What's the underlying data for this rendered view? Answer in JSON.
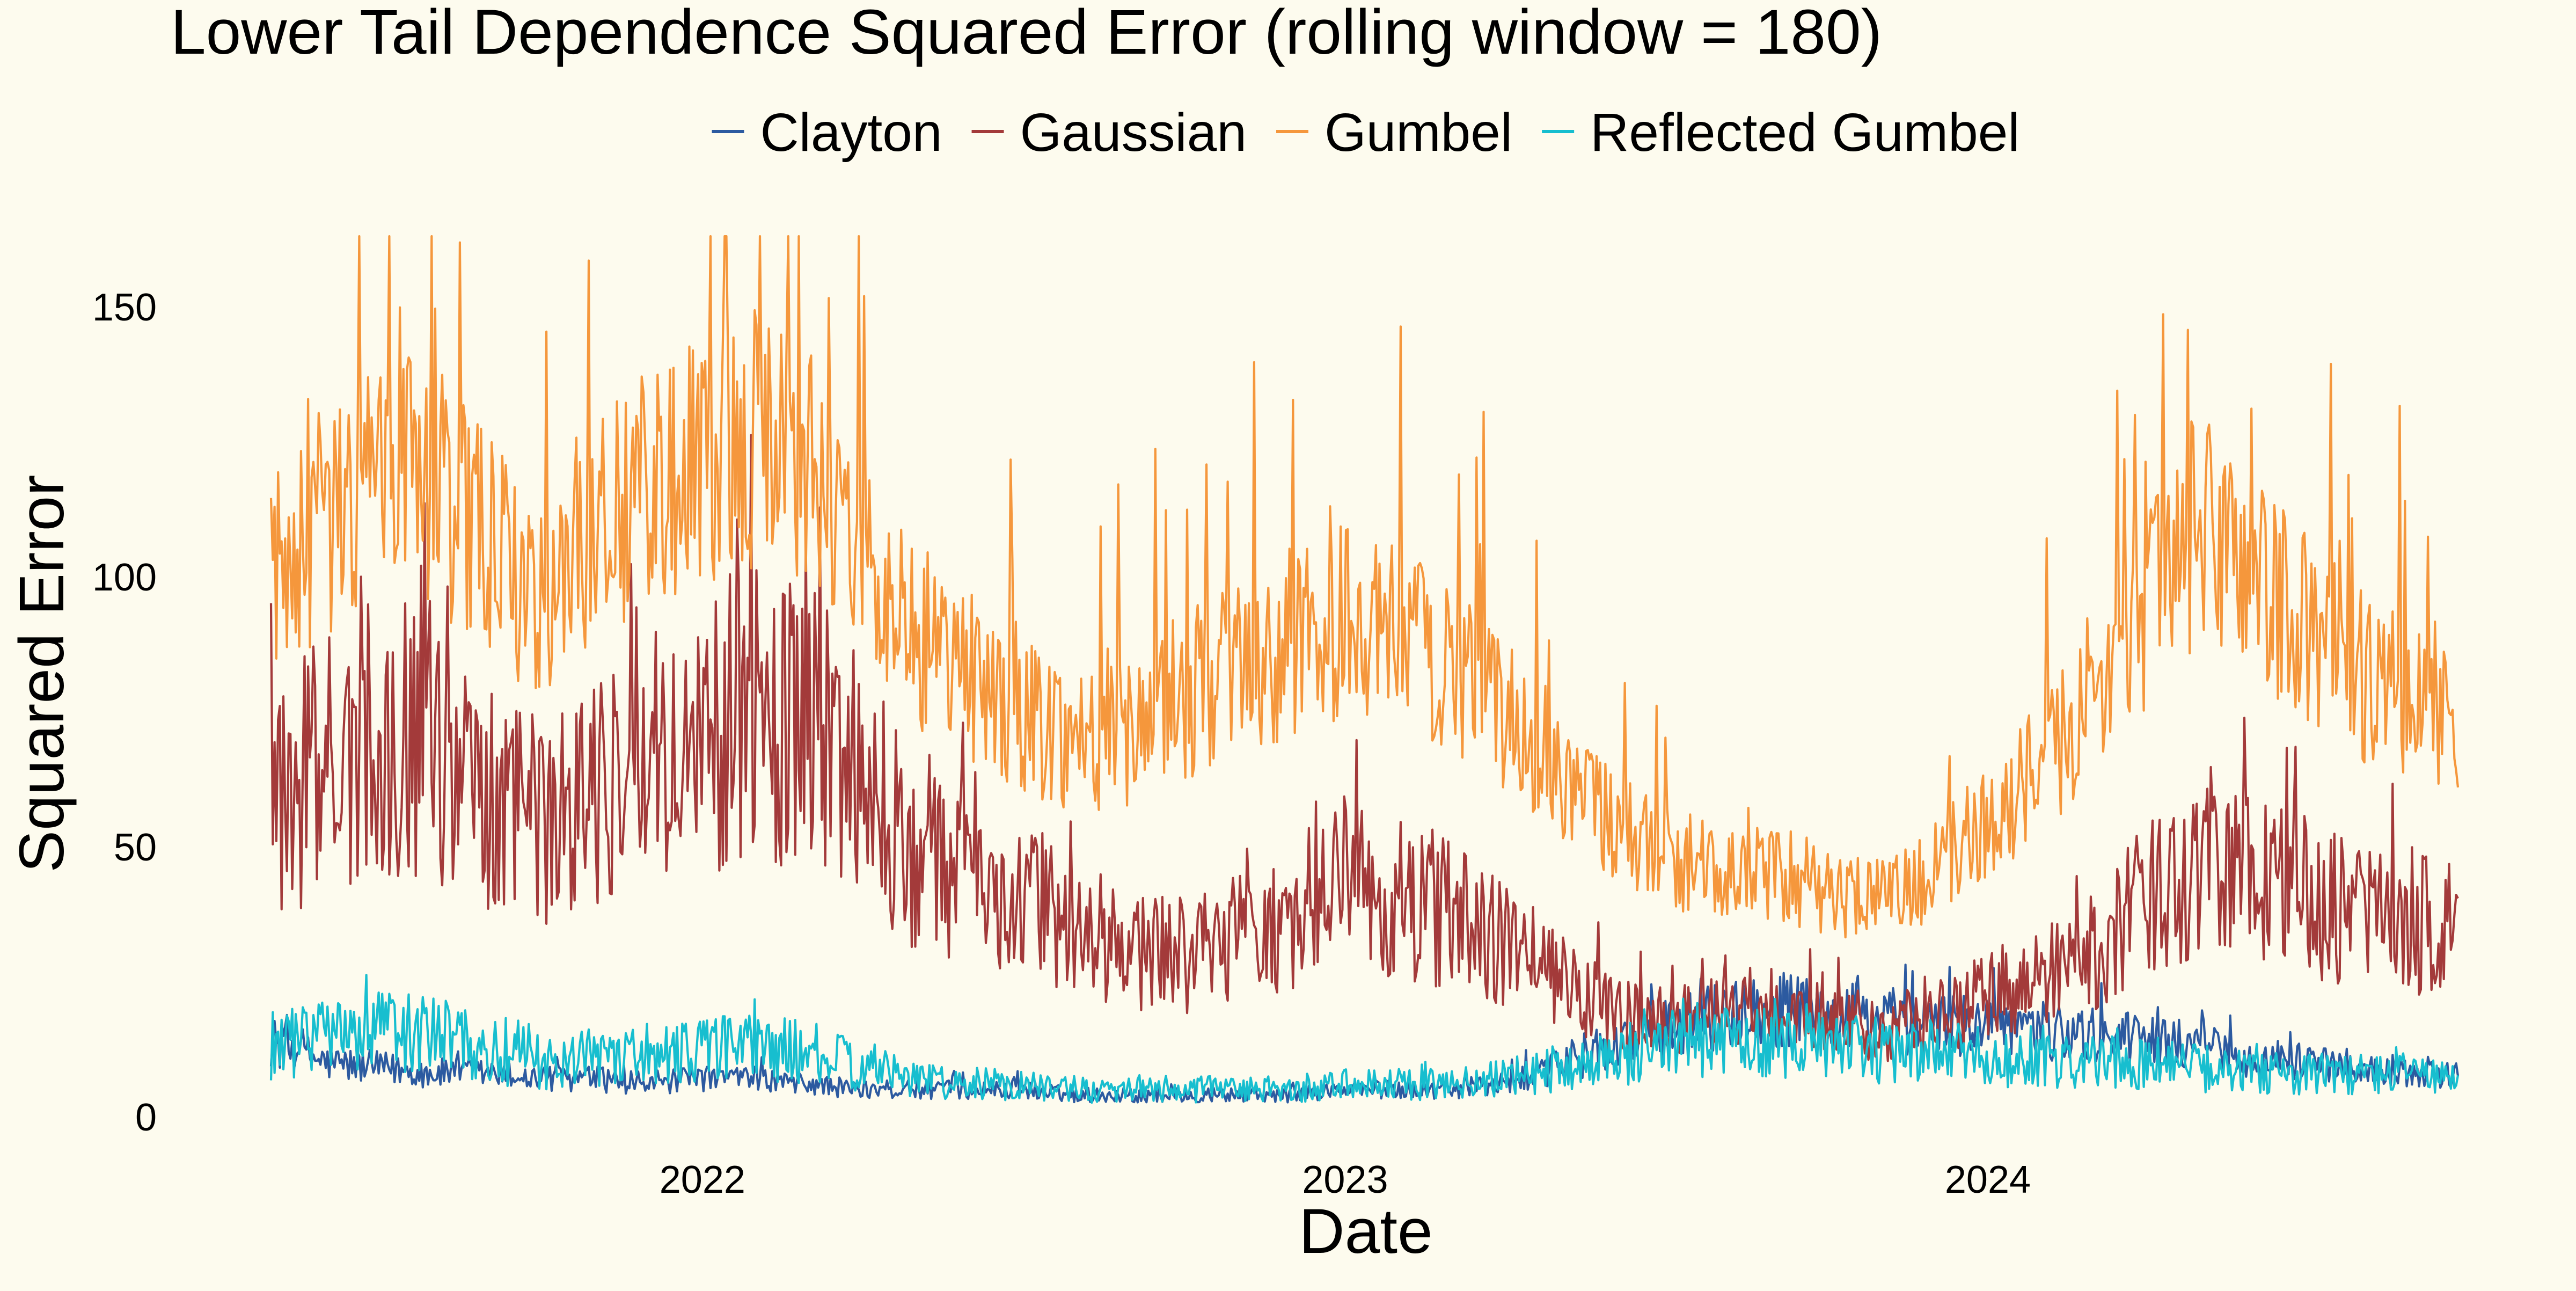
{
  "colors": {
    "background": "#fdfbee",
    "text": "#000000"
  },
  "chart_data": {
    "type": "line",
    "title": "Lower Tail Dependence Squared Error (rolling window = 180)",
    "xlabel": "Date",
    "ylabel": "Squared Error",
    "x_range": [
      "2021-05-01",
      "2024-09-24"
    ],
    "xticks": [
      {
        "date": "2022-01-01",
        "label": "2022"
      },
      {
        "date": "2023-01-01",
        "label": "2023"
      },
      {
        "date": "2024-01-01",
        "label": "2024"
      }
    ],
    "ylim": [
      0,
      165
    ],
    "yticks": [
      0,
      50,
      100,
      150
    ],
    "grid": false,
    "legend_position": "top",
    "series": [
      {
        "name": "Clayton",
        "color": "#2c5aa0",
        "x": [
          "2021-05-01",
          "2021-06-01",
          "2021-07-01",
          "2021-08-01",
          "2021-09-01",
          "2021-10-01",
          "2021-11-01",
          "2021-12-01",
          "2022-01-01",
          "2022-02-01",
          "2022-03-01",
          "2022-04-01",
          "2022-05-01",
          "2022-06-01",
          "2022-07-01",
          "2022-08-01",
          "2022-09-01",
          "2022-10-01",
          "2022-11-01",
          "2022-12-01",
          "2023-01-01",
          "2023-02-01",
          "2023-03-01",
          "2023-04-01",
          "2023-05-01",
          "2023-06-01",
          "2023-07-01",
          "2023-08-01",
          "2023-09-01",
          "2023-10-01",
          "2023-11-01",
          "2023-12-01",
          "2024-01-01",
          "2024-02-01",
          "2024-03-01",
          "2024-04-01",
          "2024-05-01",
          "2024-06-01",
          "2024-07-01",
          "2024-08-01",
          "2024-09-24"
        ],
        "y": [
          14,
          10,
          9,
          8,
          8,
          7,
          7,
          6,
          7,
          7,
          6,
          5,
          5,
          5,
          5,
          4,
          4,
          4,
          4,
          4,
          5,
          5,
          5,
          6,
          9,
          13,
          16,
          19,
          20,
          19,
          18,
          17,
          17,
          16,
          15,
          14,
          13,
          11,
          10,
          9,
          8
        ]
      },
      {
        "name": "Gaussian",
        "color": "#a33a3a",
        "x": [
          "2021-05-01",
          "2021-06-01",
          "2021-07-01",
          "2021-08-01",
          "2021-09-01",
          "2021-10-01",
          "2021-11-01",
          "2021-12-01",
          "2022-01-01",
          "2022-02-01",
          "2022-03-01",
          "2022-04-01",
          "2022-05-01",
          "2022-06-01",
          "2022-07-01",
          "2022-08-01",
          "2022-09-01",
          "2022-10-01",
          "2022-11-01",
          "2022-12-01",
          "2023-01-01",
          "2023-02-01",
          "2023-03-01",
          "2023-04-01",
          "2023-05-01",
          "2023-06-01",
          "2023-07-01",
          "2023-08-01",
          "2023-09-01",
          "2023-10-01",
          "2023-11-01",
          "2023-12-01",
          "2024-01-01",
          "2024-02-01",
          "2024-03-01",
          "2024-04-01",
          "2024-05-01",
          "2024-06-01",
          "2024-07-01",
          "2024-08-01",
          "2024-09-24"
        ],
        "y": [
          58,
          65,
          72,
          70,
          62,
          55,
          60,
          66,
          70,
          75,
          72,
          62,
          50,
          45,
          40,
          35,
          30,
          30,
          33,
          38,
          42,
          40,
          38,
          32,
          25,
          20,
          18,
          20,
          20,
          18,
          15,
          18,
          22,
          25,
          30,
          40,
          48,
          45,
          40,
          38,
          35
        ]
      },
      {
        "name": "Gumbel",
        "color": "#f5973c",
        "x": [
          "2021-05-01",
          "2021-06-01",
          "2021-07-01",
          "2021-08-01",
          "2021-09-01",
          "2021-10-01",
          "2021-11-01",
          "2021-12-01",
          "2022-01-01",
          "2022-02-01",
          "2022-03-01",
          "2022-04-01",
          "2022-05-01",
          "2022-06-01",
          "2022-07-01",
          "2022-08-01",
          "2022-09-01",
          "2022-10-01",
          "2022-11-01",
          "2022-12-01",
          "2023-01-01",
          "2023-02-01",
          "2023-03-01",
          "2023-04-01",
          "2023-05-01",
          "2023-06-01",
          "2023-07-01",
          "2023-08-01",
          "2023-09-01",
          "2023-10-01",
          "2023-11-01",
          "2023-12-01",
          "2024-01-01",
          "2024-02-01",
          "2024-03-01",
          "2024-04-01",
          "2024-05-01",
          "2024-06-01",
          "2024-07-01",
          "2024-08-01",
          "2024-09-24"
        ],
        "y": [
          100,
          110,
          120,
          118,
          105,
          95,
          110,
          118,
          122,
          125,
          120,
          105,
          90,
          82,
          75,
          70,
          72,
          78,
          82,
          88,
          92,
          88,
          85,
          75,
          65,
          55,
          48,
          45,
          45,
          42,
          40,
          45,
          55,
          65,
          78,
          95,
          110,
          100,
          90,
          82,
          75
        ]
      },
      {
        "name": "Reflected Gumbel",
        "color": "#17becf",
        "x": [
          "2021-05-01",
          "2021-06-01",
          "2021-07-01",
          "2021-08-01",
          "2021-09-01",
          "2021-10-01",
          "2021-11-01",
          "2021-12-01",
          "2022-01-01",
          "2022-02-01",
          "2022-03-01",
          "2022-04-01",
          "2022-05-01",
          "2022-06-01",
          "2022-07-01",
          "2022-08-01",
          "2022-09-01",
          "2022-10-01",
          "2022-11-01",
          "2022-12-01",
          "2023-01-01",
          "2023-02-01",
          "2023-03-01",
          "2023-04-01",
          "2023-05-01",
          "2023-06-01",
          "2023-07-01",
          "2023-08-01",
          "2023-09-01",
          "2023-10-01",
          "2023-11-01",
          "2023-12-01",
          "2024-01-01",
          "2024-02-01",
          "2024-03-01",
          "2024-04-01",
          "2024-05-01",
          "2024-06-01",
          "2024-07-01",
          "2024-08-01",
          "2024-09-24"
        ],
        "y": [
          13,
          14,
          16,
          15,
          12,
          10,
          11,
          12,
          12,
          13,
          12,
          9,
          7,
          6,
          6,
          5,
          5,
          5,
          5,
          5,
          6,
          6,
          6,
          7,
          9,
          11,
          13,
          14,
          14,
          13,
          12,
          12,
          11,
          10,
          10,
          10,
          9,
          8,
          8,
          8,
          7
        ]
      }
    ]
  }
}
